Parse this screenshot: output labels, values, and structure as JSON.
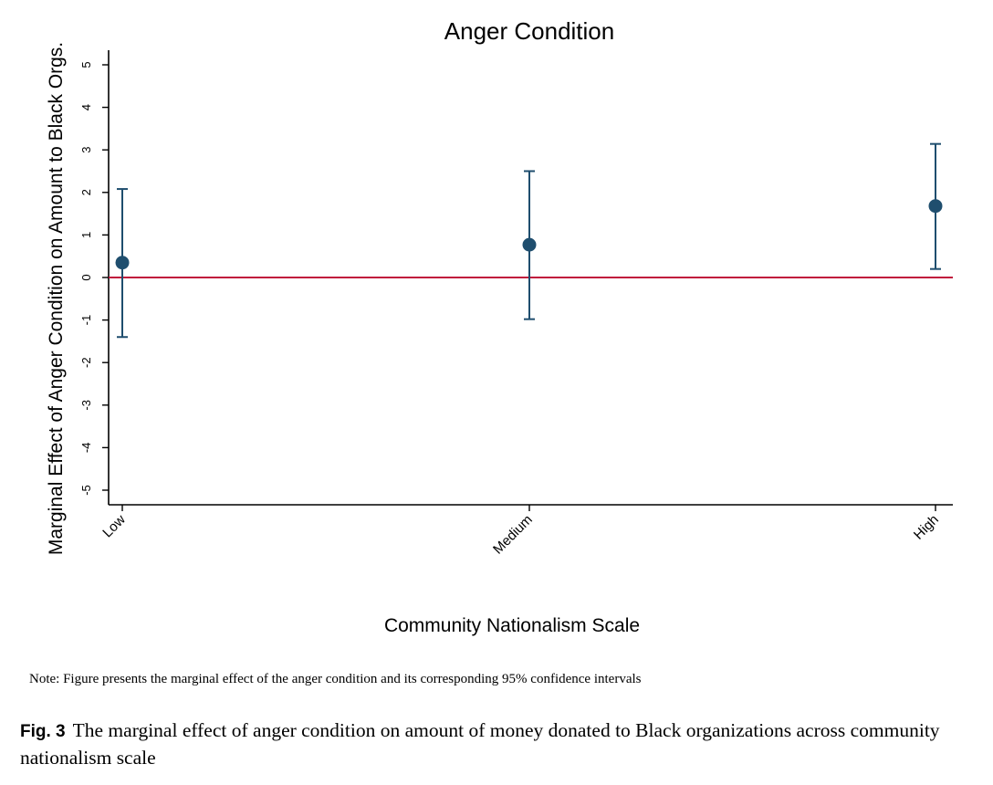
{
  "chart_data": {
    "type": "scatter",
    "title": "Anger Condition",
    "xlabel": "Community Nationalism Scale",
    "ylabel": "Marginal Effect of Anger Condition on Amount to Black Orgs.",
    "categories": [
      "Low",
      "Medium",
      "High"
    ],
    "estimates": [
      0.35,
      0.77,
      1.68
    ],
    "ci_lower": [
      -1.4,
      -0.98,
      0.2
    ],
    "ci_upper": [
      2.08,
      2.5,
      3.14
    ],
    "reference_line": 0,
    "yticks": [
      "5",
      "4",
      "3",
      "2",
      "1",
      "0",
      "-1",
      "-2",
      "-3",
      "-4",
      "-5"
    ],
    "ylim": [
      -5,
      5
    ],
    "grid": false,
    "colors": {
      "marker": "#1f4e6e",
      "reference_line": "#c0143c",
      "axis": "#000000"
    }
  },
  "note": "Note: Figure presents the marginal effect of the anger condition and its corresponding 95% confidence intervals",
  "caption": {
    "label": "Fig. 3",
    "text": "The marginal effect of anger condition on amount of money donated to Black organizations across community nationalism scale"
  }
}
